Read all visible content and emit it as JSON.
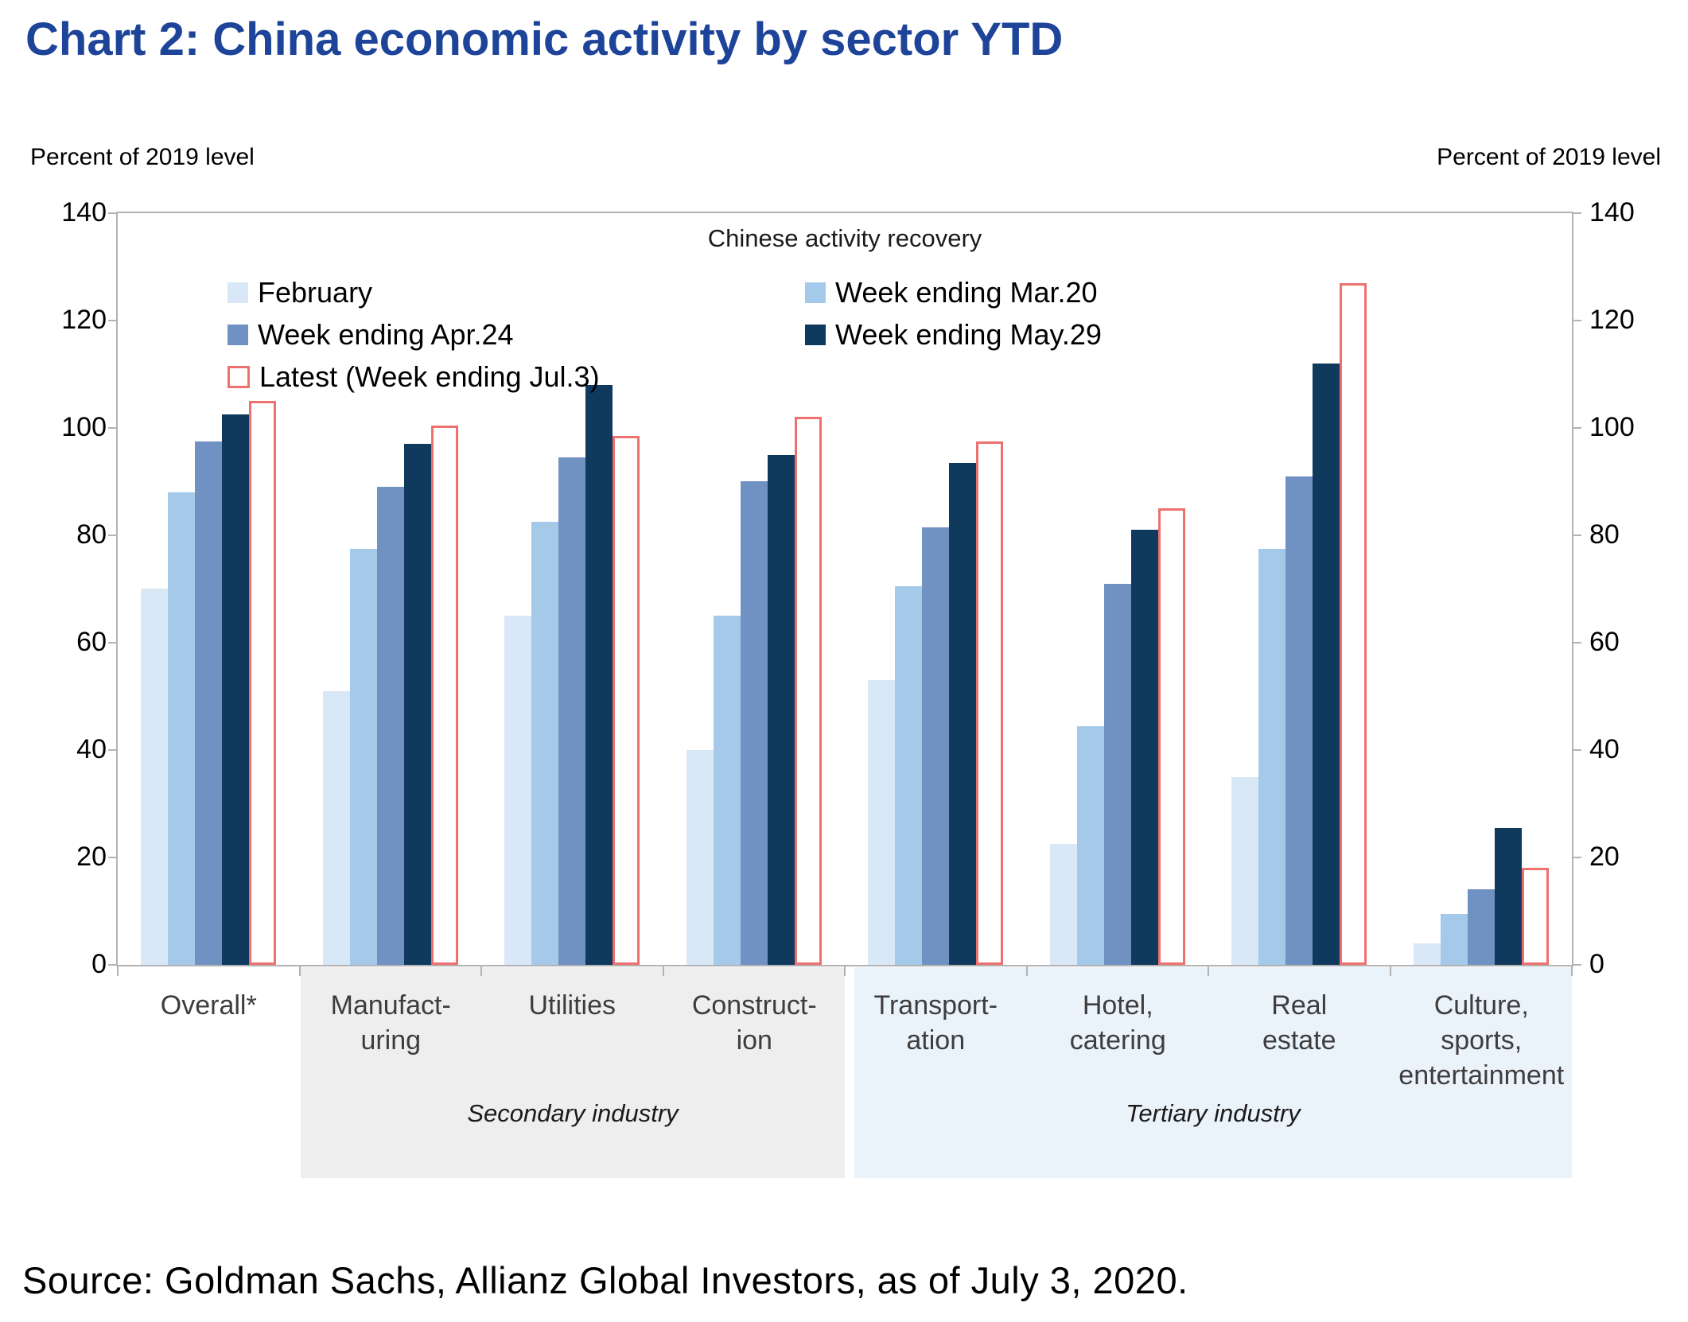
{
  "title": "Chart 2: China economic activity by sector YTD",
  "y_axis_label_left": "Percent of 2019 level",
  "y_axis_label_right": "Percent of 2019 level",
  "source": "Source: Goldman Sachs, Allianz Global Investors, as of July 3, 2020.",
  "legend": {
    "caption": "Chinese activity recovery"
  },
  "colors": {
    "title": "#1d4499",
    "axis": "#b3b3b3",
    "secondary_band": "#eeeeee",
    "tertiary_band": "#eaf2fa",
    "latest_outline": "#ee716f"
  },
  "chart_data": {
    "type": "bar",
    "title": "Chinese activity recovery",
    "ylabel": "Percent of 2019 level",
    "ylim": [
      0,
      140
    ],
    "ytick_step": 20,
    "grid": false,
    "legend_position": "inside-top-left",
    "categories": [
      "Overall*",
      "Manufacturing",
      "Utilities",
      "Construction",
      "Transportation",
      "Hotel, catering",
      "Real estate",
      "Culture, sports, entertainment"
    ],
    "category_labels_display": [
      "Overall*",
      "Manufact-\nuring",
      "Utilities",
      "Construct-\nion",
      "Transport-\nation",
      "Hotel,\ncatering",
      "Real\nestate",
      "Culture,\nsports,\nentertainment"
    ],
    "series": [
      {
        "name": "February",
        "color": "#d9e8f7",
        "values": [
          70,
          51,
          65,
          40,
          53,
          22.5,
          35,
          4
        ]
      },
      {
        "name": "Week ending Mar.20",
        "color": "#a5c9e8",
        "values": [
          88,
          77.5,
          82.5,
          65,
          70.5,
          44.5,
          77.5,
          9.5
        ]
      },
      {
        "name": "Week ending Apr.24",
        "color": "#7092c2",
        "values": [
          97.5,
          89,
          94.5,
          90,
          81.5,
          71,
          91,
          14
        ]
      },
      {
        "name": "Week ending May.29",
        "color": "#0f395d",
        "values": [
          102.5,
          97,
          108,
          95,
          93.5,
          81,
          112,
          25.5
        ]
      },
      {
        "name": "Latest (Week ending Jul.3)",
        "color": "#ffffff",
        "outline": "#ee716f",
        "values": [
          105,
          100.5,
          98.5,
          102,
          97.5,
          85,
          127,
          18
        ]
      }
    ],
    "industry_groups": [
      {
        "label": "Secondary industry",
        "category_span": [
          "Manufacturing",
          "Construction"
        ]
      },
      {
        "label": "Tertiary industry",
        "category_span": [
          "Transportation",
          "Culture, sports, entertainment"
        ]
      }
    ]
  }
}
